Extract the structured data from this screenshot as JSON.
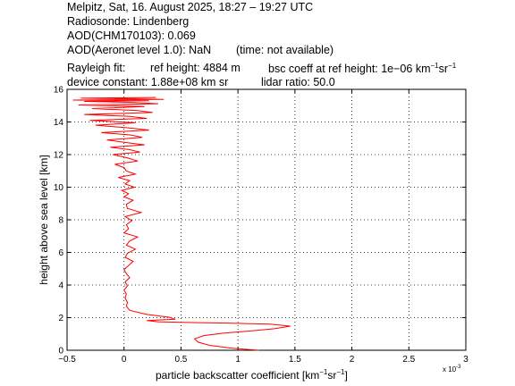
{
  "header": {
    "line1": "Melpitz, Sat, 16. August 2025, 18:27 – 19:27 UTC",
    "line2": "Radiosonde: Lindenberg",
    "line3": "AOD(CHM170103): 0.069",
    "line4_a": "AOD(Aeronet level 1.0): NaN",
    "line4_b": "(time: not available)",
    "line5_a": "Rayleigh fit:",
    "line5_b": "ref height: 4884 m",
    "line5_c": "bsc coeff at ref height: 1e−06 km",
    "line6_a": "device constant: 1.88e+08 km sr",
    "line6_b": "lidar ratio: 50.0"
  },
  "chart_data": {
    "type": "line",
    "xlabel": "particle backscatter coefficient [km",
    "ylabel": "height above sea level [km]",
    "x_multiplier": "x 10",
    "x_multiplier_exp": "-3",
    "xlim": [
      -0.5,
      3
    ],
    "ylim": [
      0,
      16
    ],
    "xticks": [
      -0.5,
      0,
      0.5,
      1,
      1.5,
      2,
      2.5,
      3
    ],
    "yticks": [
      0,
      2,
      4,
      6,
      8,
      10,
      12,
      14,
      16
    ],
    "grid": true,
    "line_color": "#ff0000",
    "series": [
      {
        "x": [
          1.18,
          0.95,
          0.75,
          0.65,
          0.62,
          0.7,
          0.88,
          1.1,
          1.32,
          1.46,
          1.28,
          0.95,
          0.6,
          0.3,
          0.2,
          0.45,
          0.4,
          0.2,
          0.05,
          0.02,
          0.03,
          0.01,
          0.02,
          0.0,
          0.03,
          0.01,
          0.05,
          0.02,
          0.0,
          0.04,
          0.08,
          0.01,
          0.03,
          0.1,
          0.02,
          0.05,
          0.12,
          0.0,
          0.04,
          0.02,
          0.07,
          0.01,
          0.15,
          0.03,
          0.02,
          0.08,
          0.0,
          0.04,
          -0.02,
          0.09,
          0.01,
          0.05,
          -0.05,
          0.1,
          0.02,
          0.0,
          -0.08,
          0.12,
          0.03,
          -0.1,
          0.14,
          0.05,
          -0.12,
          0.18,
          0.0,
          -0.15,
          0.16,
          0.06,
          -0.2,
          0.22,
          0.02,
          -0.25,
          0.1,
          -0.3,
          0.2,
          0.05,
          -0.35,
          0.25,
          0.12,
          -0.28,
          0.18,
          -0.4,
          0.3,
          0.08,
          -0.35,
          0.22,
          -0.45,
          0.35,
          0.1,
          -0.38,
          0.28
        ],
        "y": [
          0.0,
          0.12,
          0.3,
          0.5,
          0.7,
          0.9,
          1.05,
          1.18,
          1.32,
          1.48,
          1.6,
          1.66,
          1.7,
          1.75,
          1.82,
          1.9,
          2.02,
          2.2,
          2.45,
          2.7,
          2.95,
          3.2,
          3.45,
          3.7,
          3.95,
          4.2,
          4.45,
          4.7,
          4.95,
          5.2,
          5.45,
          5.7,
          5.95,
          6.2,
          6.45,
          6.7,
          6.95,
          7.2,
          7.45,
          7.7,
          7.95,
          8.2,
          8.45,
          8.7,
          8.95,
          9.2,
          9.4,
          9.6,
          9.8,
          10.0,
          10.2,
          10.4,
          10.6,
          10.8,
          11.0,
          11.2,
          11.4,
          11.6,
          11.8,
          12.0,
          12.15,
          12.3,
          12.45,
          12.6,
          12.75,
          12.9,
          13.05,
          13.2,
          13.35,
          13.5,
          13.65,
          13.8,
          13.95,
          14.1,
          14.22,
          14.34,
          14.46,
          14.58,
          14.7,
          14.82,
          14.94,
          15.04,
          15.12,
          15.2,
          15.26,
          15.3,
          15.34,
          15.38,
          15.42,
          15.46,
          15.5
        ]
      }
    ]
  }
}
